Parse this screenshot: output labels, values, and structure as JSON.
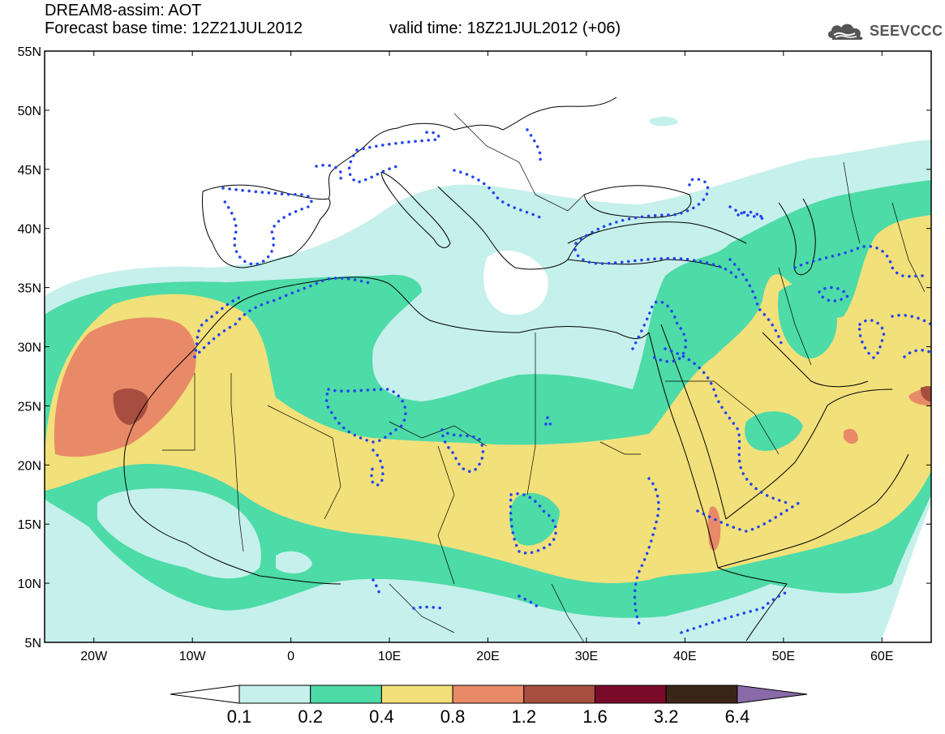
{
  "header": {
    "title": "DREAM8-assim: AOT",
    "forecast_base": "Forecast base time: 12Z21JUL2012",
    "valid_time": "valid time: 18Z21JUL2012 (+06)"
  },
  "logo": {
    "text": "SEEVCCC",
    "icon": "cloud-icon"
  },
  "map": {
    "lon_range": [
      -25,
      65
    ],
    "lat_range": [
      5,
      55
    ],
    "lat_labels": [
      "55N",
      "50N",
      "45N",
      "40N",
      "35N",
      "30N",
      "25N",
      "20N",
      "15N",
      "10N",
      "5N"
    ],
    "lon_labels": [
      "20W",
      "10W",
      "0",
      "10E",
      "20E",
      "30E",
      "40E",
      "50E",
      "60E"
    ]
  },
  "colorbar": {
    "labels": [
      "0.1",
      "0.2",
      "0.4",
      "0.8",
      "1.2",
      "1.6",
      "3.2",
      "6.4"
    ],
    "colors": [
      "#ffffff",
      "#c6f0ec",
      "#4ddba8",
      "#f2e07a",
      "#e88a68",
      "#a84e40",
      "#7a0a2a",
      "#3a2618",
      "#8a6aa8"
    ]
  }
}
